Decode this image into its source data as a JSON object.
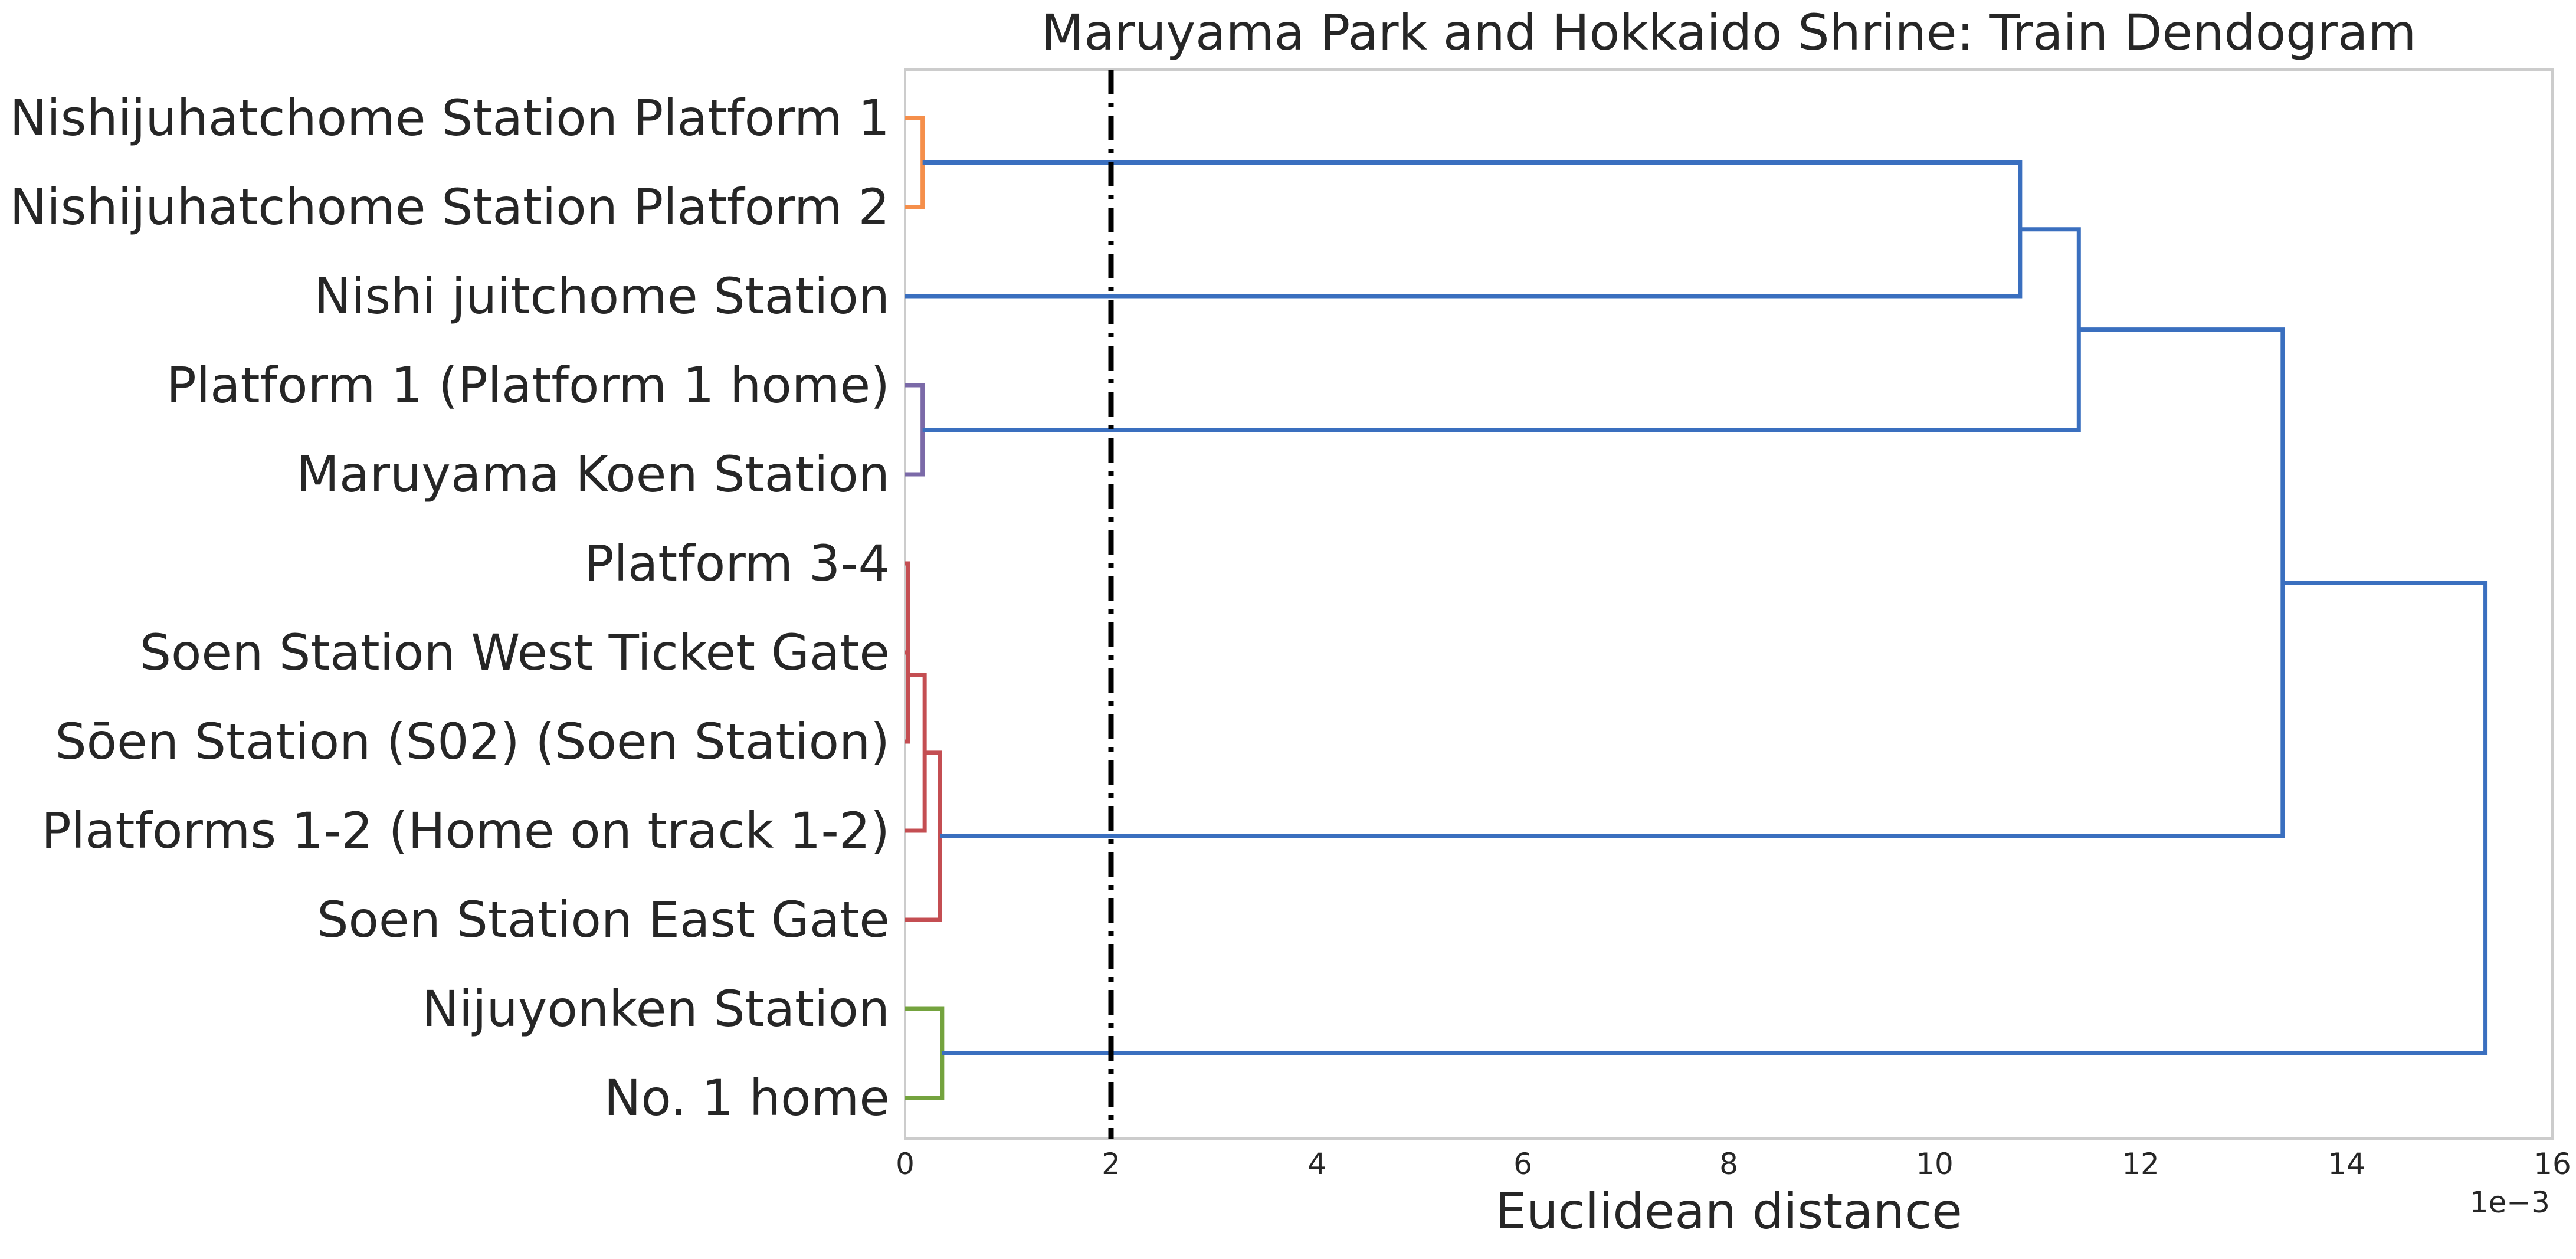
{
  "chart_data": {
    "type": "dendrogram",
    "orientation": "horizontal",
    "title": "Maruyama Park and Hokkaido Shrine: Train Dendogram",
    "xlabel": "Euclidean distance",
    "ylabel": "",
    "x_scale_label": "1e−3",
    "xlim": [
      0,
      16
    ],
    "xticks": [
      "0",
      "2",
      "4",
      "6",
      "8",
      "10",
      "12",
      "14",
      "16"
    ],
    "grid": false,
    "threshold_line": {
      "x": 2.0,
      "style": "dash-dot",
      "color": "#000000"
    },
    "leaves": [
      "Nishijuhatchome Station Platform 1",
      "Nishijuhatchome Station Platform 2",
      "Nishi juitchome Station",
      "Platform 1 (Platform 1 home)",
      "Maruyama Koen Station",
      "Platform 3-4",
      "Soen Station West Ticket Gate",
      "Sōen Station (S02) (Soen Station)",
      "Platforms 1-2 (Home on track 1-2)",
      "Soen Station East Gate",
      "Nijuyonken Station",
      "No. 1 home"
    ],
    "merges": [
      {
        "id": "c1",
        "left": "L0",
        "right": "L1",
        "height": 0.17,
        "color": "#f58f4b"
      },
      {
        "id": "c2",
        "left": "L3",
        "right": "L4",
        "height": 0.17,
        "color": "#7b6aa8"
      },
      {
        "id": "c3",
        "left": "L5",
        "right": "L6",
        "height": 0.03,
        "color": "#c44e52"
      },
      {
        "id": "c4",
        "left": "c3",
        "right": "L7",
        "height": 0.03,
        "color": "#c44e52"
      },
      {
        "id": "c5",
        "left": "c4",
        "right": "L8",
        "height": 0.19,
        "color": "#c44e52"
      },
      {
        "id": "c6",
        "left": "c5",
        "right": "L9",
        "height": 0.34,
        "color": "#c44e52"
      },
      {
        "id": "c7",
        "left": "L10",
        "right": "L11",
        "height": 0.36,
        "color": "#74a33e"
      },
      {
        "id": "c8",
        "left": "c1",
        "right": "L2",
        "height": 10.83,
        "color": "#3a6fbf"
      },
      {
        "id": "c9",
        "left": "c8",
        "right": "c2",
        "height": 11.4,
        "color": "#3a6fbf"
      },
      {
        "id": "c10",
        "left": "c9",
        "right": "c6",
        "height": 13.38,
        "color": "#3a6fbf"
      },
      {
        "id": "c11",
        "left": "c10",
        "right": "c7",
        "height": 15.35,
        "color": "#3a6fbf"
      }
    ],
    "colors": {
      "above_threshold": "#3a6fbf",
      "cluster_orange": "#f58f4b",
      "cluster_purple": "#7b6aa8",
      "cluster_red": "#c44e52",
      "cluster_green": "#74a33e",
      "text": "#262626",
      "spine": "#cccccc"
    }
  }
}
